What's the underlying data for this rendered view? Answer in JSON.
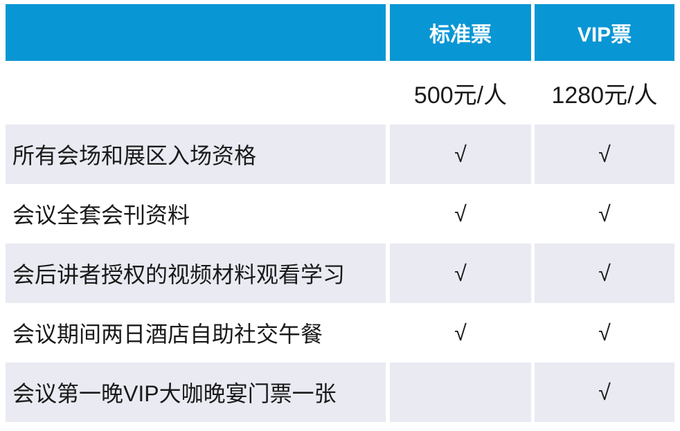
{
  "colors": {
    "header_bg": "#0996D4",
    "header_text": "#FFFFFF",
    "band_bg": "#E9EAF2",
    "body_text": "#1A1A1A"
  },
  "header": {
    "standard": "标准票",
    "vip": "VIP票"
  },
  "prices": {
    "standard": "500元/人",
    "vip": "1280元/人"
  },
  "check_symbol": "√",
  "rows": [
    {
      "label": "所有会场和展区入场资格",
      "standard": "√",
      "vip": "√"
    },
    {
      "label": "会议全套会刊资料",
      "standard": "√",
      "vip": "√"
    },
    {
      "label": "会后讲者授权的视频材料观看学习",
      "standard": "√",
      "vip": "√"
    },
    {
      "label": "会议期间两日酒店自助社交午餐",
      "standard": "√",
      "vip": "√"
    },
    {
      "label": "会议第一晚VIP大咖晚宴门票一张",
      "standard": "",
      "vip": "√"
    }
  ]
}
